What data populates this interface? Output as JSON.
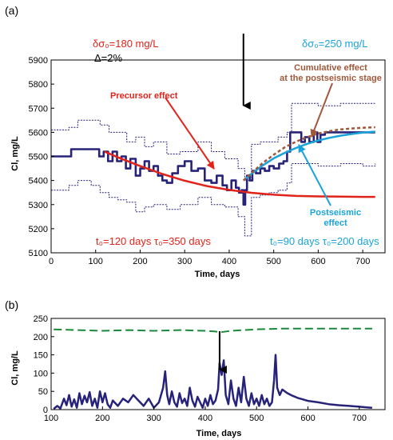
{
  "chart_data": [
    {
      "panel_label": "(a)",
      "type": "line",
      "xlabel": "Time, days",
      "ylabel": "Cl, mg/L",
      "xlim": [
        0,
        750
      ],
      "ylim": [
        5100,
        5900
      ],
      "x_ticks": [
        0,
        100,
        200,
        300,
        400,
        500,
        600,
        700
      ],
      "y_ticks": [
        5100,
        5200,
        5300,
        5400,
        5500,
        5600,
        5700,
        5800,
        5900
      ],
      "arrow_day": 432,
      "annotations": {
        "delta_sigma_red": "δσ₀=180 mg/L",
        "delta_pct": "Δ=2%",
        "delta_sigma_blue": "δσ₀=250 mg/L",
        "precursor": "Precursor effect",
        "cumulative_line1": "Cumulative effect",
        "cumulative_line2": "at the postseismic stage",
        "postseismic_line1": "Postseismic",
        "postseismic_line2": "effect",
        "params_red": "t₀=120 days  τ₀=350 days",
        "params_blue": "t₀=90 days  τ₀=200 days"
      },
      "colors": {
        "measured": "#27237a",
        "precursor": "#e2231a",
        "postseismic": "#1aa3d9",
        "cumulative": "#a0583a"
      },
      "series": [
        {
          "key": "measured",
          "x": [
            0,
            20,
            45,
            70,
            98,
            108,
            118,
            128,
            138,
            148,
            158,
            168,
            178,
            190,
            200,
            210,
            220,
            230,
            240,
            250,
            260,
            272,
            285,
            300,
            315,
            330,
            345,
            360,
            372,
            385,
            395,
            405,
            415,
            422,
            428,
            432,
            436,
            440,
            446,
            452,
            460,
            470,
            480,
            490,
            500,
            512,
            522,
            530,
            537,
            545,
            555,
            562,
            570,
            580,
            590,
            598,
            605,
            615,
            625,
            640,
            655,
            670,
            690,
            710,
            728
          ],
          "y": [
            5500,
            5500,
            5530,
            5530,
            5530,
            5500,
            5520,
            5480,
            5520,
            5480,
            5500,
            5450,
            5490,
            5420,
            5450,
            5480,
            5440,
            5460,
            5420,
            5400,
            5390,
            5430,
            5460,
            5480,
            5440,
            5450,
            5400,
            5390,
            5420,
            5380,
            5360,
            5400,
            5370,
            5350,
            5360,
            5300,
            5360,
            5420,
            5400,
            5440,
            5430,
            5450,
            5440,
            5460,
            5450,
            5470,
            5480,
            5520,
            5600,
            5600,
            5600,
            5560,
            5580,
            5560,
            5600,
            5560,
            5590,
            5600,
            5600,
            5600,
            5600,
            5600,
            5600,
            5600,
            5600
          ]
        },
        {
          "key": "upper_bound",
          "x": [
            0,
            40,
            60,
            90,
            110,
            130,
            150,
            170,
            190,
            210,
            230,
            260,
            290,
            330,
            360,
            390,
            420,
            435,
            450,
            470,
            490,
            510,
            530,
            540,
            560,
            600,
            650,
            700,
            728
          ],
          "y": [
            5610,
            5620,
            5650,
            5650,
            5630,
            5600,
            5600,
            5560,
            5580,
            5540,
            5560,
            5510,
            5520,
            5560,
            5520,
            5490,
            5450,
            5400,
            5550,
            5560,
            5560,
            5580,
            5600,
            5720,
            5720,
            5710,
            5720,
            5720,
            5720
          ]
        },
        {
          "key": "lower_bound",
          "x": [
            0,
            40,
            60,
            90,
            110,
            130,
            150,
            170,
            190,
            210,
            230,
            260,
            290,
            330,
            360,
            390,
            420,
            435,
            450,
            470,
            490,
            510,
            530,
            540,
            560,
            600,
            650,
            700,
            728
          ],
          "y": [
            5360,
            5380,
            5400,
            5380,
            5350,
            5330,
            5320,
            5310,
            5270,
            5290,
            5300,
            5280,
            5300,
            5330,
            5300,
            5290,
            5250,
            5170,
            5330,
            5340,
            5350,
            5360,
            5390,
            5470,
            5470,
            5460,
            5470,
            5460,
            5470
          ]
        },
        {
          "key": "precursor",
          "x": [
            120,
            150,
            200,
            250,
            300,
            350,
            400,
            450,
            500,
            550,
            600,
            650,
            700,
            728
          ],
          "y": [
            5520,
            5496,
            5460,
            5427,
            5399,
            5377,
            5361,
            5349,
            5341,
            5336,
            5334,
            5333,
            5332,
            5332
          ]
        },
        {
          "key": "postseismic",
          "x": [
            432,
            450,
            475,
            500,
            525,
            550,
            575,
            600,
            625,
            650,
            675,
            700,
            728
          ],
          "y": [
            5400,
            5428,
            5462,
            5492,
            5515,
            5535,
            5552,
            5566,
            5577,
            5586,
            5593,
            5599,
            5603
          ]
        },
        {
          "key": "cumulative",
          "x": [
            432,
            450,
            475,
            500,
            525,
            550,
            575,
            600,
            625,
            650,
            675,
            700,
            728
          ],
          "y": [
            5400,
            5431,
            5472,
            5507,
            5538,
            5561,
            5580,
            5595,
            5605,
            5612,
            5616,
            5619,
            5621
          ]
        }
      ]
    },
    {
      "panel_label": "(b)",
      "type": "line",
      "xlabel": "Time, days",
      "ylabel": "Cl, mg/L",
      "xlim": [
        100,
        750
      ],
      "ylim": [
        0,
        250
      ],
      "x_ticks": [
        100,
        200,
        300,
        400,
        500,
        600,
        700
      ],
      "y_ticks": [
        0,
        50,
        100,
        150,
        200,
        250
      ],
      "arrow_day": 428,
      "colors": {
        "deviation": "#27237a",
        "threshold": "#1a8a3a"
      },
      "series": [
        {
          "key": "deviation",
          "x": [
            105,
            112,
            118,
            125,
            130,
            135,
            140,
            145,
            150,
            155,
            160,
            165,
            170,
            175,
            180,
            185,
            190,
            195,
            200,
            205,
            210,
            215,
            220,
            230,
            240,
            250,
            260,
            270,
            280,
            290,
            300,
            310,
            318,
            322,
            326,
            330,
            335,
            340,
            345,
            350,
            355,
            360,
            365,
            370,
            375,
            380,
            385,
            390,
            395,
            400,
            405,
            410,
            415,
            420,
            425,
            428,
            432,
            436,
            440,
            445,
            450,
            455,
            460,
            465,
            470,
            475,
            480,
            485,
            490,
            495,
            500,
            505,
            510,
            515,
            520,
            525,
            530,
            534,
            537,
            540,
            545,
            550,
            560,
            570,
            580,
            590,
            600,
            620,
            640,
            660,
            680,
            700,
            715,
            725
          ],
          "y": [
            2,
            10,
            3,
            30,
            12,
            40,
            8,
            28,
            5,
            45,
            15,
            38,
            20,
            48,
            10,
            30,
            5,
            50,
            20,
            45,
            15,
            5,
            25,
            10,
            30,
            20,
            40,
            25,
            10,
            30,
            5,
            20,
            60,
            105,
            40,
            15,
            50,
            20,
            8,
            45,
            18,
            30,
            10,
            60,
            25,
            8,
            35,
            20,
            5,
            30,
            10,
            40,
            15,
            25,
            55,
            128,
            95,
            135,
            40,
            15,
            80,
            30,
            10,
            60,
            20,
            90,
            30,
            10,
            45,
            15,
            30,
            10,
            40,
            15,
            30,
            10,
            20,
            80,
            150,
            60,
            40,
            55,
            45,
            38,
            32,
            28,
            24,
            20,
            15,
            12,
            10,
            8,
            6,
            5
          ]
        },
        {
          "key": "threshold",
          "x": [
            105,
            150,
            200,
            250,
            300,
            350,
            400,
            420,
            430,
            450,
            500,
            550,
            600,
            650,
            700,
            725
          ],
          "y": [
            220,
            218,
            216,
            218,
            216,
            218,
            216,
            214,
            212,
            216,
            220,
            222,
            222,
            222,
            222,
            222
          ]
        }
      ]
    }
  ]
}
